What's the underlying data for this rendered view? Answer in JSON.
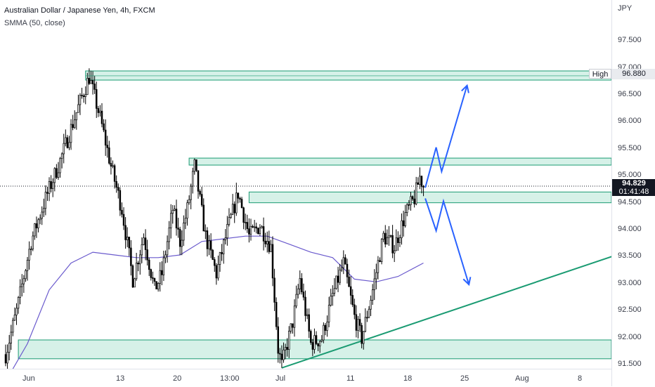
{
  "header": {
    "title": "Australian Dollar / Japanese Yen, 4h, FXCM",
    "indicator": "SMMA (50, close)"
  },
  "price_axis": {
    "currency": "JPY",
    "ticks": [
      "97.500",
      "97.000",
      "96.500",
      "96.000",
      "95.500",
      "95.000",
      "94.500",
      "94.000",
      "93.500",
      "93.000",
      "92.500",
      "92.000",
      "91.500"
    ],
    "high_label": "High",
    "high_value": "96.880",
    "current_price": "94.829",
    "countdown": "01:41:48"
  },
  "time_axis": {
    "ticks": [
      "Jun",
      "13",
      "20",
      "13:00",
      "Jul",
      "11",
      "18",
      "25",
      "Aug",
      "8"
    ]
  },
  "colors": {
    "candle": "#000000",
    "zone_fill": "#d2f0e6",
    "zone_border": "#1a9b72",
    "trendline": "#1a9b72",
    "smma": "#6a5acd",
    "projection_arrows": "#2962ff"
  },
  "chart_data": {
    "type": "candlestick",
    "symbol": "AUDJPY",
    "timeframe": "4h",
    "ylim": [
      91.45,
      97.75
    ],
    "y_ticks": [
      97.5,
      97.0,
      96.5,
      96.0,
      95.5,
      95.0,
      94.5,
      94.0,
      93.5,
      93.0,
      92.5,
      92.0,
      91.5
    ],
    "trend_anchors": [
      {
        "i": 0,
        "p": 91.7
      },
      {
        "i": 6,
        "p": 92.5
      },
      {
        "i": 14,
        "p": 93.8
      },
      {
        "i": 22,
        "p": 94.6
      },
      {
        "i": 30,
        "p": 95.3
      },
      {
        "i": 40,
        "p": 96.3
      },
      {
        "i": 46,
        "p": 96.86
      },
      {
        "i": 52,
        "p": 96.1
      },
      {
        "i": 58,
        "p": 95.2
      },
      {
        "i": 64,
        "p": 94.4
      },
      {
        "i": 70,
        "p": 93.1
      },
      {
        "i": 76,
        "p": 93.9
      },
      {
        "i": 82,
        "p": 92.9
      },
      {
        "i": 86,
        "p": 93.2
      },
      {
        "i": 92,
        "p": 94.4
      },
      {
        "i": 96,
        "p": 93.8
      },
      {
        "i": 100,
        "p": 94.4
      },
      {
        "i": 104,
        "p": 95.2
      },
      {
        "i": 110,
        "p": 93.9
      },
      {
        "i": 116,
        "p": 93.2
      },
      {
        "i": 122,
        "p": 94.0
      },
      {
        "i": 128,
        "p": 94.7
      },
      {
        "i": 134,
        "p": 93.9
      },
      {
        "i": 140,
        "p": 94.1
      },
      {
        "i": 146,
        "p": 93.7
      },
      {
        "i": 150,
        "p": 91.8
      },
      {
        "i": 152,
        "p": 91.5
      },
      {
        "i": 158,
        "p": 92.3
      },
      {
        "i": 162,
        "p": 93.1
      },
      {
        "i": 168,
        "p": 91.9
      },
      {
        "i": 174,
        "p": 92.0
      },
      {
        "i": 180,
        "p": 92.8
      },
      {
        "i": 186,
        "p": 93.4
      },
      {
        "i": 192,
        "p": 92.4
      },
      {
        "i": 196,
        "p": 92.0
      },
      {
        "i": 202,
        "p": 92.9
      },
      {
        "i": 208,
        "p": 93.9
      },
      {
        "i": 214,
        "p": 93.7
      },
      {
        "i": 220,
        "p": 94.3
      },
      {
        "i": 225,
        "p": 94.6
      },
      {
        "i": 228,
        "p": 95.0
      },
      {
        "i": 230,
        "p": 94.83
      }
    ],
    "smma_points": [
      {
        "i": 0,
        "p": 91.2
      },
      {
        "i": 12,
        "p": 91.9
      },
      {
        "i": 24,
        "p": 92.9
      },
      {
        "i": 36,
        "p": 93.4
      },
      {
        "i": 48,
        "p": 93.6
      },
      {
        "i": 60,
        "p": 93.55
      },
      {
        "i": 72,
        "p": 93.5
      },
      {
        "i": 84,
        "p": 93.5
      },
      {
        "i": 96,
        "p": 93.55
      },
      {
        "i": 108,
        "p": 93.8
      },
      {
        "i": 120,
        "p": 93.85
      },
      {
        "i": 132,
        "p": 93.9
      },
      {
        "i": 144,
        "p": 93.9
      },
      {
        "i": 156,
        "p": 93.75
      },
      {
        "i": 168,
        "p": 93.6
      },
      {
        "i": 180,
        "p": 93.5
      },
      {
        "i": 192,
        "p": 93.1
      },
      {
        "i": 204,
        "p": 93.05
      },
      {
        "i": 216,
        "p": 93.15
      },
      {
        "i": 230,
        "p": 93.4
      }
    ],
    "zones": [
      {
        "name": "high-resistance",
        "from": 44,
        "top": 96.97,
        "bottom": 96.8
      },
      {
        "name": "upper-resistance",
        "from": 101,
        "top": 95.35,
        "bottom": 95.22
      },
      {
        "name": "breakout-zone",
        "from": 134,
        "top": 94.72,
        "bottom": 94.52
      },
      {
        "name": "support-base",
        "from": 7,
        "top": 91.97,
        "bottom": 91.62
      }
    ],
    "trendline": {
      "from": {
        "i": 152,
        "p": 91.45
      },
      "to": {
        "i": 345,
        "p": 93.65
      }
    },
    "projections": {
      "bullish": [
        {
          "i": 231,
          "p": 94.8
        },
        {
          "i": 237,
          "p": 95.55
        },
        {
          "i": 240,
          "p": 95.1
        },
        {
          "i": 254,
          "p": 96.7
        }
      ],
      "bearish": [
        {
          "i": 231,
          "p": 94.6
        },
        {
          "i": 237,
          "p": 94.0
        },
        {
          "i": 241,
          "p": 94.55
        },
        {
          "i": 255,
          "p": 93.0
        }
      ]
    },
    "high": 96.88,
    "current": 94.829
  }
}
